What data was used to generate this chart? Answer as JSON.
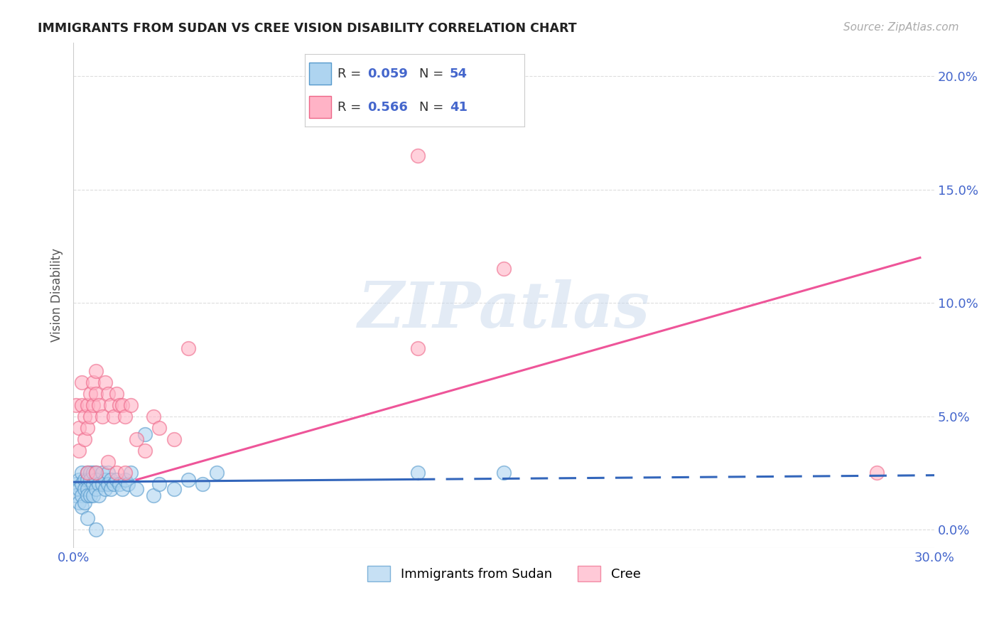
{
  "title": "IMMIGRANTS FROM SUDAN VS CREE VISION DISABILITY CORRELATION CHART",
  "source": "Source: ZipAtlas.com",
  "ylabel": "Vision Disability",
  "xlim": [
    0.0,
    0.3
  ],
  "ylim": [
    -0.008,
    0.215
  ],
  "blue_R": 0.059,
  "blue_N": 54,
  "pink_R": 0.566,
  "pink_N": 41,
  "blue_color": "#aed4f0",
  "pink_color": "#ffb3c6",
  "blue_edge_color": "#5599cc",
  "pink_edge_color": "#ee6688",
  "blue_line_color": "#3366bb",
  "pink_line_color": "#ee5599",
  "tick_color": "#4466cc",
  "blue_scatter_x": [
    0.001,
    0.001,
    0.002,
    0.002,
    0.002,
    0.003,
    0.003,
    0.003,
    0.003,
    0.004,
    0.004,
    0.004,
    0.005,
    0.005,
    0.005,
    0.005,
    0.006,
    0.006,
    0.006,
    0.007,
    0.007,
    0.007,
    0.008,
    0.008,
    0.008,
    0.009,
    0.009,
    0.01,
    0.01,
    0.011,
    0.011,
    0.012,
    0.012,
    0.013,
    0.013,
    0.014,
    0.015,
    0.016,
    0.017,
    0.018,
    0.019,
    0.02,
    0.022,
    0.025,
    0.028,
    0.03,
    0.035,
    0.04,
    0.045,
    0.05,
    0.12,
    0.15,
    0.005,
    0.008
  ],
  "blue_scatter_y": [
    0.02,
    0.015,
    0.022,
    0.018,
    0.012,
    0.025,
    0.02,
    0.015,
    0.01,
    0.022,
    0.018,
    0.012,
    0.025,
    0.022,
    0.018,
    0.015,
    0.025,
    0.022,
    0.015,
    0.025,
    0.02,
    0.015,
    0.025,
    0.022,
    0.018,
    0.02,
    0.015,
    0.025,
    0.02,
    0.022,
    0.018,
    0.025,
    0.02,
    0.022,
    0.018,
    0.02,
    0.022,
    0.02,
    0.018,
    0.022,
    0.02,
    0.025,
    0.018,
    0.042,
    0.015,
    0.02,
    0.018,
    0.022,
    0.02,
    0.025,
    0.025,
    0.025,
    0.005,
    0.0
  ],
  "pink_scatter_x": [
    0.001,
    0.002,
    0.002,
    0.003,
    0.003,
    0.004,
    0.004,
    0.005,
    0.005,
    0.006,
    0.006,
    0.007,
    0.007,
    0.008,
    0.008,
    0.009,
    0.01,
    0.011,
    0.012,
    0.013,
    0.014,
    0.015,
    0.016,
    0.017,
    0.018,
    0.02,
    0.022,
    0.025,
    0.028,
    0.03,
    0.035,
    0.04,
    0.12,
    0.15,
    0.005,
    0.008,
    0.012,
    0.015,
    0.018,
    0.12,
    0.28
  ],
  "pink_scatter_y": [
    0.055,
    0.045,
    0.035,
    0.065,
    0.055,
    0.05,
    0.04,
    0.055,
    0.045,
    0.06,
    0.05,
    0.065,
    0.055,
    0.07,
    0.06,
    0.055,
    0.05,
    0.065,
    0.06,
    0.055,
    0.05,
    0.06,
    0.055,
    0.055,
    0.05,
    0.055,
    0.04,
    0.035,
    0.05,
    0.045,
    0.04,
    0.08,
    0.165,
    0.115,
    0.025,
    0.025,
    0.03,
    0.025,
    0.025,
    0.08,
    0.025
  ],
  "watermark_text": "ZIPatlas",
  "background_color": "#ffffff",
  "grid_color": "#dddddd",
  "ytick_positions": [
    0.0,
    0.05,
    0.1,
    0.15,
    0.2
  ],
  "ytick_labels": [
    "0.0%",
    "5.0%",
    "10.0%",
    "15.0%",
    "20.0%"
  ],
  "xtick_positions": [
    0.0,
    0.05,
    0.1,
    0.15,
    0.2,
    0.25,
    0.3
  ],
  "xtick_labels": [
    "0.0%",
    "",
    "",
    "",
    "",
    "",
    "30.0%"
  ]
}
